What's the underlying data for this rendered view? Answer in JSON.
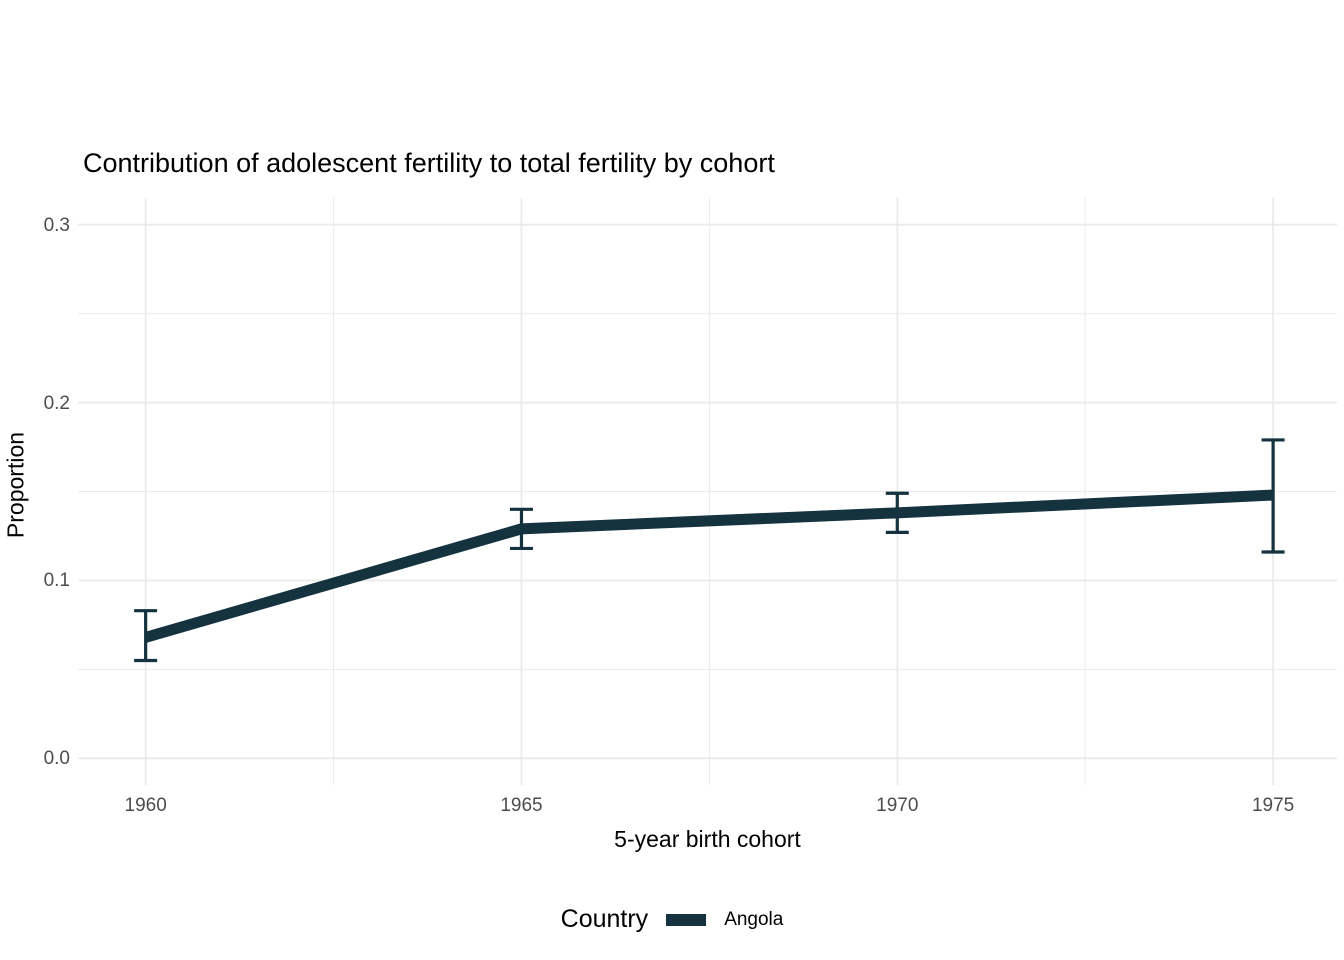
{
  "figure": {
    "background": "#FFFFFF"
  },
  "chart_data": {
    "type": "line",
    "title": "Contribution of adolescent fertility to total fertility by cohort",
    "xlabel": "5-year birth cohort",
    "ylabel": "Proportion",
    "legend": {
      "title": "Country",
      "position": "bottom",
      "entries": [
        {
          "label": "Angola",
          "color": "#14333F"
        }
      ]
    },
    "series": [
      {
        "name": "Angola",
        "color": "#14333F",
        "x": [
          1960,
          1965,
          1970,
          1975
        ],
        "y": [
          0.068,
          0.129,
          0.138,
          0.148
        ],
        "ymin": [
          0.055,
          0.118,
          0.127,
          0.116
        ],
        "ymax": [
          0.083,
          0.14,
          0.149,
          0.179
        ]
      }
    ],
    "x_ticks": [
      1960,
      1965,
      1970,
      1975
    ],
    "x_tick_labels": [
      "1960",
      "1965",
      "1970",
      "1975"
    ],
    "x_minor_ticks": [
      1962.5,
      1967.5,
      1972.5
    ],
    "y_ticks": [
      0.0,
      0.1,
      0.2,
      0.3
    ],
    "y_tick_labels": [
      "0.0",
      "0.1",
      "0.2",
      "0.3"
    ],
    "y_minor_ticks": [
      0.05,
      0.15,
      0.25
    ],
    "xlim": [
      1959.1,
      1975.85
    ],
    "ylim": [
      -0.015,
      0.315
    ],
    "grid": true,
    "grid_color": "#EBEBEB",
    "tick_label_color": "#4D4D4D",
    "title_color": "#000000"
  }
}
